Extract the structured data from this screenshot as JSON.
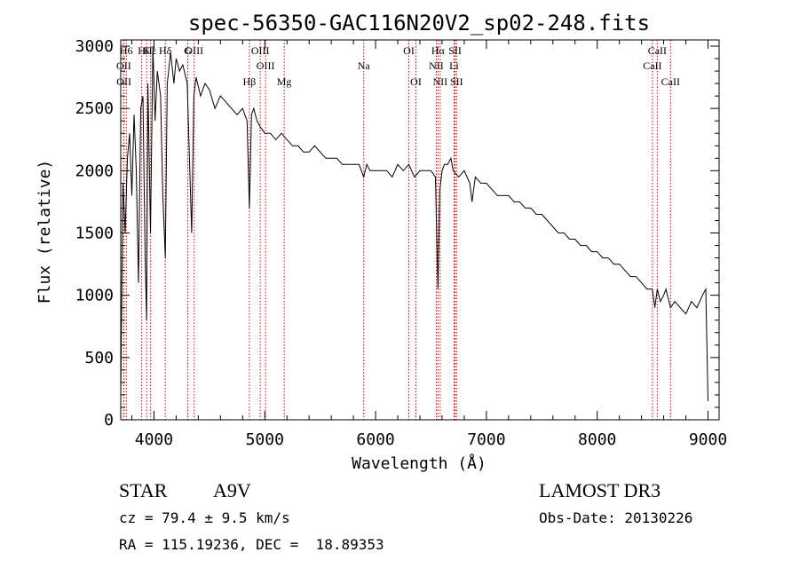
{
  "chart_data": {
    "type": "line",
    "title": "spec-56350-GAC116N20V2_sp02-248.fits",
    "xlabel": "Wavelength (Å)",
    "ylabel": "Flux (relative)",
    "xlim": [
      3700,
      9100
    ],
    "ylim": [
      0,
      3050
    ],
    "xticks": [
      4000,
      5000,
      6000,
      7000,
      8000,
      9000
    ],
    "yticks": [
      0,
      500,
      1000,
      1500,
      2000,
      2500,
      3000
    ],
    "grid": false,
    "series": [
      {
        "name": "spectrum",
        "x": [
          3700,
          3720,
          3740,
          3760,
          3780,
          3800,
          3820,
          3840,
          3860,
          3880,
          3900,
          3920,
          3933,
          3945,
          3968,
          3990,
          4010,
          4030,
          4060,
          4080,
          4102,
          4120,
          4150,
          4180,
          4200,
          4230,
          4260,
          4300,
          4340,
          4360,
          4380,
          4420,
          4460,
          4500,
          4550,
          4600,
          4650,
          4700,
          4750,
          4800,
          4840,
          4861,
          4880,
          4900,
          4930,
          4960,
          5000,
          5050,
          5100,
          5150,
          5200,
          5250,
          5300,
          5350,
          5400,
          5450,
          5500,
          5550,
          5600,
          5650,
          5700,
          5750,
          5800,
          5850,
          5893,
          5920,
          5950,
          6000,
          6050,
          6100,
          6150,
          6200,
          6250,
          6300,
          6350,
          6400,
          6450,
          6500,
          6540,
          6563,
          6580,
          6600,
          6620,
          6650,
          6680,
          6700,
          6750,
          6800,
          6850,
          6870,
          6900,
          6950,
          7000,
          7050,
          7100,
          7150,
          7200,
          7250,
          7300,
          7350,
          7400,
          7450,
          7500,
          7550,
          7600,
          7650,
          7700,
          7750,
          7800,
          7850,
          7900,
          7950,
          8000,
          8050,
          8100,
          8150,
          8200,
          8250,
          8300,
          8350,
          8400,
          8450,
          8498,
          8520,
          8542,
          8570,
          8600,
          8620,
          8662,
          8700,
          8750,
          8800,
          8850,
          8900,
          8950,
          8980,
          9000
        ],
        "values": [
          200,
          1900,
          1500,
          2100,
          2300,
          1800,
          2450,
          2000,
          1100,
          2500,
          2600,
          1300,
          800,
          2700,
          1500,
          3000,
          2400,
          2800,
          2600,
          1800,
          1300,
          2700,
          2950,
          2700,
          2900,
          2800,
          2850,
          2700,
          1500,
          2600,
          2750,
          2600,
          2700,
          2650,
          2500,
          2600,
          2550,
          2500,
          2450,
          2500,
          2400,
          1700,
          2450,
          2500,
          2400,
          2350,
          2300,
          2300,
          2250,
          2300,
          2250,
          2200,
          2200,
          2150,
          2150,
          2200,
          2150,
          2100,
          2100,
          2100,
          2050,
          2050,
          2050,
          2050,
          1950,
          2050,
          2000,
          2000,
          2000,
          2000,
          1950,
          2050,
          2000,
          2050,
          1950,
          2000,
          2000,
          2000,
          1950,
          1050,
          1850,
          2000,
          2050,
          2050,
          2100,
          2000,
          1950,
          2000,
          1900,
          1750,
          1950,
          1900,
          1900,
          1850,
          1800,
          1800,
          1800,
          1750,
          1750,
          1700,
          1700,
          1650,
          1650,
          1600,
          1550,
          1500,
          1500,
          1450,
          1450,
          1400,
          1400,
          1350,
          1350,
          1300,
          1300,
          1250,
          1250,
          1200,
          1150,
          1150,
          1100,
          1050,
          1050,
          900,
          1050,
          950,
          1000,
          1050,
          900,
          950,
          900,
          850,
          950,
          900,
          1000,
          1050,
          150
        ]
      }
    ],
    "lines": [
      {
        "label": "H6",
        "wl": 3750,
        "tier": 0
      },
      {
        "label": "K",
        "wl": 3934,
        "tier": 0
      },
      {
        "label": "H",
        "wl": 3889,
        "tier": 0
      },
      {
        "label": "Hε",
        "wl": 3970,
        "tier": 0
      },
      {
        "label": "Hδ",
        "wl": 4102,
        "tier": 0
      },
      {
        "label": "G",
        "wl": 4305,
        "tier": 0
      },
      {
        "label": "OIII",
        "wl": 4363,
        "tier": 0
      },
      {
        "label": "OIII",
        "wl": 4959,
        "tier": 0
      },
      {
        "label": "OI",
        "wl": 6300,
        "tier": 0
      },
      {
        "label": "Hα",
        "wl": 6563,
        "tier": 0
      },
      {
        "label": "SII",
        "wl": 6717,
        "tier": 0
      },
      {
        "label": "CaII",
        "wl": 8542,
        "tier": 0
      },
      {
        "label": "OII",
        "wl": 3727,
        "tier": 1
      },
      {
        "label": "OIII",
        "wl": 5007,
        "tier": 1
      },
      {
        "label": "Na",
        "wl": 5893,
        "tier": 1
      },
      {
        "label": "NII",
        "wl": 6548,
        "tier": 1
      },
      {
        "label": "Li",
        "wl": 6708,
        "tier": 1
      },
      {
        "label": "CaII",
        "wl": 8498,
        "tier": 1
      },
      {
        "label": "OII",
        "wl": 3729,
        "tier": 2
      },
      {
        "label": "Hβ",
        "wl": 4861,
        "tier": 2
      },
      {
        "label": "Mg",
        "wl": 5175,
        "tier": 2
      },
      {
        "label": "OI",
        "wl": 6364,
        "tier": 2
      },
      {
        "label": "NII",
        "wl": 6583,
        "tier": 2
      },
      {
        "label": "SII",
        "wl": 6731,
        "tier": 2
      },
      {
        "label": "CaII",
        "wl": 8662,
        "tier": 2
      }
    ]
  },
  "info": {
    "object_class": "STAR",
    "subclass": "A9V",
    "survey": "LAMOST DR3",
    "redshift": "cz = 79.4 ± 9.5 km/s",
    "obs_date": "Obs-Date: 20130226",
    "coords": "RA = 115.19236, DEC =  18.89353"
  },
  "colors": {
    "line_marker": "#cc0000",
    "spectrum": "#000000"
  }
}
